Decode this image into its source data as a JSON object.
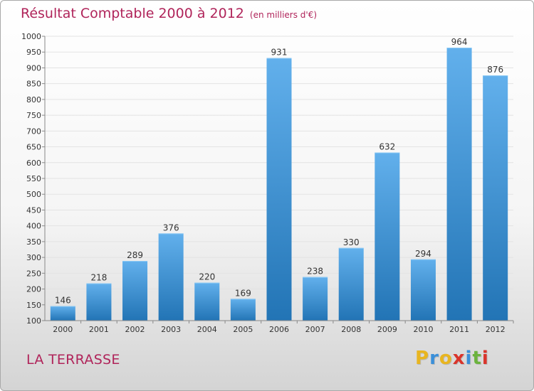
{
  "title": "Résultat Comptable 2000 à 2012",
  "unit_label": "(en milliers d'€)",
  "commune": "LA TERRASSE",
  "logo": {
    "letters": [
      "P",
      "r",
      "o",
      "x",
      "i",
      "t",
      "i"
    ],
    "colors": [
      "#e8b520",
      "#3a8fd9",
      "#e8b520",
      "#d9342b",
      "#3a8fd9",
      "#6cb33e",
      "#d9342b"
    ]
  },
  "colors": {
    "title": "#b0245a",
    "bar_light": "#62b0ec",
    "bar_dark": "#2274b5",
    "grid": "#e3e3e3",
    "axis": "#888888",
    "text": "#333333"
  },
  "chart_data": {
    "type": "bar",
    "title": "Résultat Comptable 2000 à 2012",
    "xlabel": "",
    "ylabel": "",
    "categories": [
      "2000",
      "2001",
      "2002",
      "2003",
      "2004",
      "2005",
      "2006",
      "2007",
      "2008",
      "2009",
      "2010",
      "2011",
      "2012"
    ],
    "values": [
      146,
      218,
      289,
      376,
      220,
      169,
      931,
      238,
      330,
      632,
      294,
      964,
      876
    ],
    "ylim": [
      100,
      1000
    ],
    "yticks": [
      100,
      150,
      200,
      250,
      300,
      350,
      400,
      450,
      500,
      550,
      600,
      650,
      700,
      750,
      800,
      850,
      900,
      950,
      1000
    ],
    "grid": true
  }
}
